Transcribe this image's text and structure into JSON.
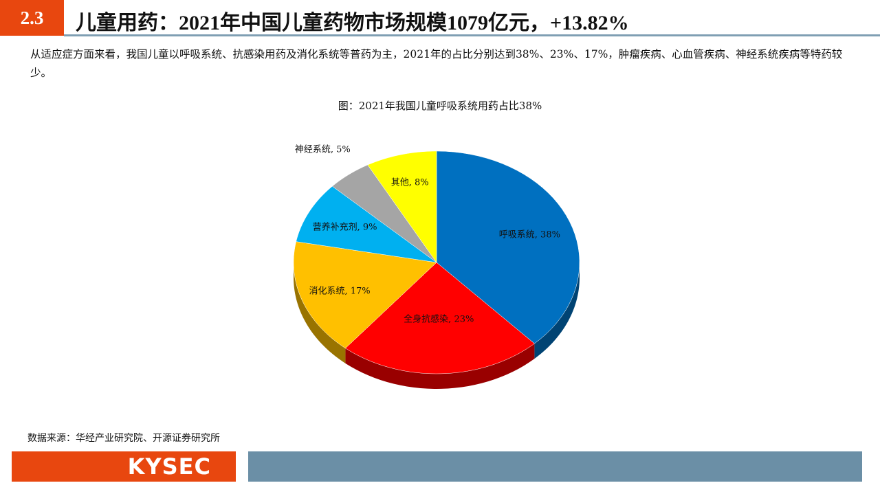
{
  "header": {
    "section": "2.3",
    "title": "儿童用药：2021年中国儿童药物市场规模1079亿元，+13.82%"
  },
  "intro": "从适应症方面来看，我国儿童以呼吸系统、抗感染用药及消化系统等普药为主，2021年的占比分别达到38%、23%、17%，肿瘤疾病、心血管疾病、神经系统疾病等特药较少。",
  "chart_data": {
    "type": "pie",
    "title": "图：2021年我国儿童呼吸系统用药占比38%",
    "categories": [
      "呼吸系统",
      "全身抗感染",
      "消化系统",
      "营养补充剂",
      "神经系统",
      "其他"
    ],
    "values": [
      38,
      23,
      17,
      9,
      5,
      8
    ],
    "labels": [
      "呼吸系统, 38%",
      "全身抗感染, 23%",
      "消化系统, 17%",
      "营养补充剂, 9%",
      "神经系统, 5%",
      "其他, 8%"
    ],
    "colors": [
      "#0070c0",
      "#ff0000",
      "#ffc000",
      "#00b0f0",
      "#a5a5a5",
      "#ffff00"
    ],
    "style": "3d"
  },
  "source": "数据来源：华经产业研究院、开源证券研究所",
  "footer": {
    "logo": "KYSEC"
  }
}
